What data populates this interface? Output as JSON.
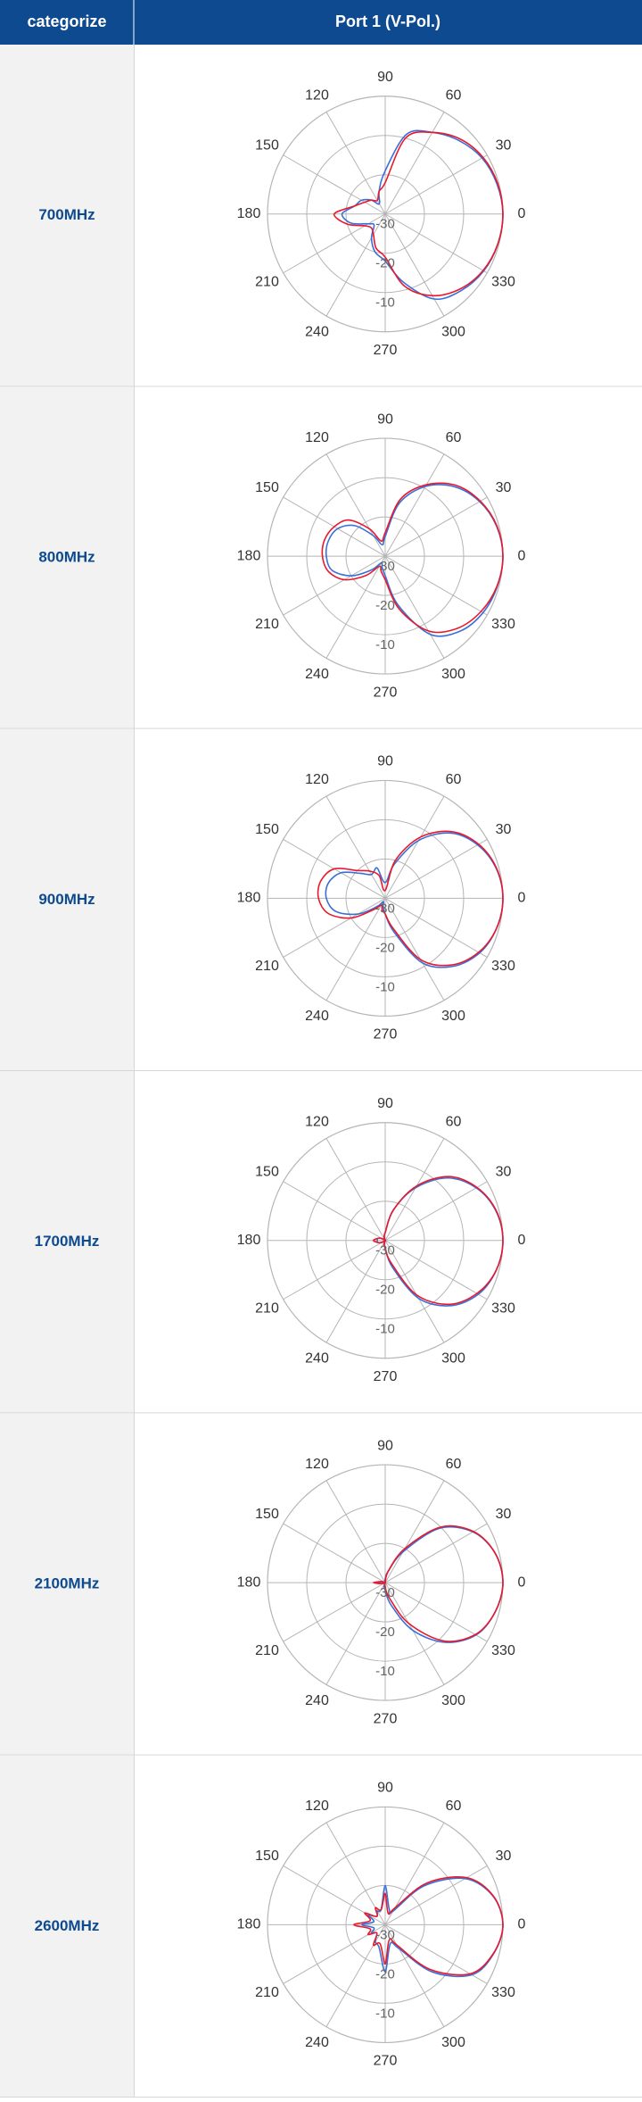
{
  "table": {
    "header": [
      "categorize",
      "Port 1 (V-Pol.)"
    ]
  },
  "chart_data": [
    {
      "type": "polar",
      "label": "700MHz",
      "rlim": [
        -30,
        0
      ],
      "rticks": [
        -30,
        -20,
        -10
      ],
      "thetaticks": [
        0,
        30,
        60,
        90,
        120,
        150,
        180,
        210,
        240,
        270,
        300,
        330
      ],
      "theta": [
        0,
        15,
        30,
        45,
        60,
        75,
        90,
        105,
        120,
        135,
        150,
        165,
        180,
        195,
        210,
        225,
        240,
        255,
        270,
        285,
        300,
        315,
        330,
        345
      ],
      "series": [
        {
          "color": "#3a6fd8",
          "values": [
            0,
            -0.5,
            -1.5,
            -3.5,
            -6,
            -9,
            -19,
            -24,
            -27,
            -25,
            -23,
            -22,
            -19,
            -21,
            -25,
            -26,
            -23,
            -20,
            -18,
            -12,
            -5,
            -2.5,
            -1,
            -0.3
          ]
        },
        {
          "color": "#e8192c",
          "values": [
            0,
            -0.3,
            -1.2,
            -3,
            -6,
            -10,
            -22,
            -24,
            -26,
            -25,
            -24,
            -22,
            -17,
            -20,
            -24,
            -25,
            -24,
            -21,
            -19,
            -11,
            -6,
            -3,
            -1.2,
            -0.3
          ]
        }
      ]
    },
    {
      "type": "polar",
      "label": "800MHz",
      "rlim": [
        -30,
        0
      ],
      "rticks": [
        -30,
        -20,
        -10
      ],
      "thetaticks": [
        0,
        30,
        60,
        90,
        120,
        150,
        180,
        210,
        240,
        270,
        300,
        330
      ],
      "theta": [
        0,
        15,
        30,
        45,
        60,
        75,
        90,
        105,
        120,
        135,
        150,
        165,
        180,
        195,
        210,
        225,
        240,
        255,
        270,
        285,
        300,
        315,
        330,
        345
      ],
      "series": [
        {
          "color": "#3a6fd8",
          "values": [
            0,
            -0.6,
            -2.2,
            -5,
            -9.5,
            -16,
            -25,
            -27,
            -24,
            -19,
            -16,
            -15,
            -15,
            -16,
            -20,
            -25,
            -28,
            -27,
            -25,
            -17,
            -7,
            -3,
            -1.2,
            -0.4
          ]
        },
        {
          "color": "#e8192c",
          "values": [
            0,
            -0.5,
            -2,
            -4.5,
            -9,
            -15,
            -24,
            -26,
            -22,
            -17,
            -15,
            -14,
            -14,
            -15,
            -18,
            -23,
            -27,
            -26,
            -24,
            -16,
            -8,
            -4,
            -1.8,
            -0.5
          ]
        }
      ]
    },
    {
      "type": "polar",
      "label": "900MHz",
      "rlim": [
        -30,
        0
      ],
      "rticks": [
        -30,
        -20,
        -10
      ],
      "thetaticks": [
        0,
        30,
        60,
        90,
        120,
        150,
        180,
        210,
        240,
        270,
        300,
        330
      ],
      "theta": [
        0,
        15,
        30,
        45,
        60,
        75,
        90,
        105,
        120,
        135,
        150,
        165,
        180,
        195,
        210,
        225,
        240,
        255,
        270,
        285,
        300,
        315,
        330,
        345
      ],
      "series": [
        {
          "color": "#3a6fd8",
          "values": [
            0,
            -0.7,
            -2.8,
            -6.5,
            -13,
            -21,
            -26,
            -22,
            -23,
            -21,
            -17,
            -15,
            -15,
            -17,
            -22,
            -27,
            -29,
            -28,
            -26,
            -21,
            -11,
            -5.5,
            -2.2,
            -0.6
          ]
        },
        {
          "color": "#e8192c",
          "values": [
            0,
            -0.6,
            -2.5,
            -6,
            -12,
            -20,
            -28,
            -24,
            -22,
            -20,
            -15,
            -13,
            -13,
            -15,
            -20,
            -26,
            -28,
            -27,
            -26,
            -22,
            -12,
            -6,
            -2.5,
            -0.6
          ]
        }
      ]
    },
    {
      "type": "polar",
      "label": "1700MHz",
      "rlim": [
        -30,
        0
      ],
      "rticks": [
        -30,
        -20,
        -10
      ],
      "thetaticks": [
        0,
        30,
        60,
        90,
        120,
        150,
        180,
        210,
        240,
        270,
        300,
        330
      ],
      "theta": [
        0,
        15,
        30,
        45,
        60,
        75,
        90,
        105,
        120,
        135,
        150,
        165,
        180,
        195,
        210,
        225,
        240,
        255,
        270,
        285,
        300,
        315,
        330,
        345
      ],
      "series": [
        {
          "color": "#3a6fd8",
          "values": [
            0,
            -0.8,
            -3.2,
            -7.5,
            -14.5,
            -22,
            -28,
            -29,
            -30,
            -30,
            -29,
            -28,
            -28,
            -28,
            -29,
            -30,
            -30,
            -29,
            -28,
            -23,
            -13,
            -6.5,
            -2.6,
            -0.7
          ]
        },
        {
          "color": "#e8192c",
          "values": [
            0,
            -0.7,
            -3,
            -7,
            -14,
            -22,
            -28,
            -29,
            -30,
            -30,
            -29,
            -28,
            -27,
            -28,
            -29,
            -30,
            -30,
            -29,
            -28,
            -24,
            -14,
            -7,
            -3,
            -0.7
          ]
        }
      ]
    },
    {
      "type": "polar",
      "label": "2100MHz",
      "rlim": [
        -30,
        0
      ],
      "rticks": [
        -30,
        -20,
        -10
      ],
      "thetaticks": [
        0,
        30,
        60,
        90,
        120,
        150,
        180,
        210,
        240,
        270,
        300,
        330
      ],
      "theta": [
        0,
        15,
        30,
        45,
        60,
        75,
        90,
        105,
        120,
        135,
        150,
        165,
        180,
        195,
        210,
        225,
        240,
        255,
        270,
        285,
        300,
        315,
        330,
        345
      ],
      "series": [
        {
          "color": "#3a6fd8",
          "values": [
            0,
            -1,
            -4.2,
            -10.5,
            -21,
            -27,
            -29,
            -30,
            -30,
            -30,
            -30,
            -29,
            -28,
            -29,
            -30,
            -30,
            -30,
            -29,
            -28,
            -24,
            -16,
            -8.5,
            -3.3,
            -1
          ]
        },
        {
          "color": "#e8192c",
          "values": [
            0,
            -1,
            -4,
            -10,
            -20,
            -27,
            -30,
            -30,
            -30,
            -30,
            -30,
            -29,
            -27,
            -29,
            -30,
            -30,
            -30,
            -30,
            -29,
            -26,
            -18,
            -9,
            -3.5,
            -1
          ]
        }
      ]
    },
    {
      "type": "polar",
      "label": "2600MHz",
      "rlim": [
        -30,
        0
      ],
      "rticks": [
        -30,
        -20,
        -10
      ],
      "thetaticks": [
        0,
        30,
        60,
        90,
        120,
        150,
        180,
        210,
        240,
        270,
        300,
        330
      ],
      "theta": [
        0,
        15,
        30,
        45,
        60,
        75,
        90,
        105,
        120,
        135,
        150,
        165,
        180,
        195,
        210,
        225,
        240,
        255,
        270,
        285,
        300,
        315,
        330,
        345
      ],
      "series": [
        {
          "color": "#3a6fd8",
          "values": [
            0,
            -1.6,
            -6.5,
            -16,
            -26,
            -26,
            -20,
            -26,
            -26,
            -27,
            -25,
            -27,
            -24,
            -27,
            -26,
            -27,
            -25,
            -24,
            -18,
            -25,
            -23,
            -13,
            -4.5,
            -1.4
          ]
        },
        {
          "color": "#e8192c",
          "values": [
            0,
            -1.5,
            -6,
            -15,
            -25,
            -27,
            -22,
            -26,
            -25,
            -27,
            -24,
            -26,
            -22,
            -26,
            -25,
            -27,
            -24,
            -25,
            -20,
            -26,
            -24,
            -14,
            -5,
            -1.5
          ]
        }
      ]
    }
  ]
}
